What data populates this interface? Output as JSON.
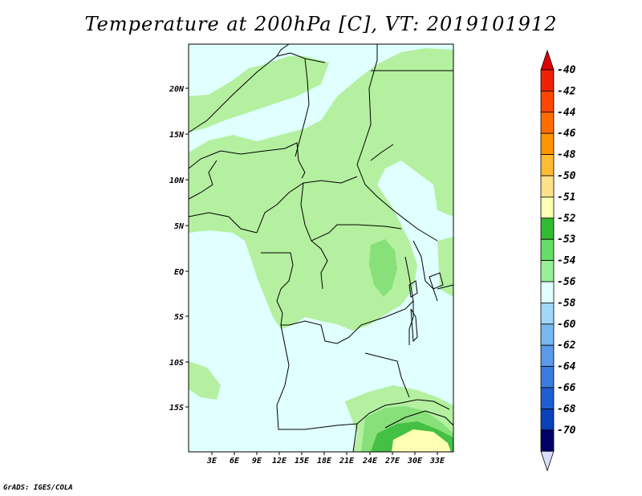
{
  "title": "Temperature at 200hPa [C], VT: 2019101912",
  "credit": "GrADS: IGES/COLA",
  "lat_labels": [
    "20N",
    "15N",
    "10N",
    "5N",
    "EQ",
    "5S",
    "10S",
    "15S"
  ],
  "lon_labels": [
    "3E",
    "6E",
    "9E",
    "12E",
    "15E",
    "18E",
    "21E",
    "24E",
    "27E",
    "30E",
    "33E"
  ],
  "colorbar": {
    "labels": [
      "-40",
      "-42",
      "-44",
      "-46",
      "-48",
      "-50",
      "-51",
      "-52",
      "-53",
      "-54",
      "-56",
      "-58",
      "-60",
      "-62",
      "-64",
      "-66",
      "-68",
      "-70"
    ],
    "colors": [
      "#ee2200",
      "#ff4500",
      "#ff6d00",
      "#ff9500",
      "#ffbb33",
      "#ffe08a",
      "#ffffb4",
      "#33bb33",
      "#66dd66",
      "#99ee99",
      "#e0ffff",
      "#a0d8f8",
      "#78b8f0",
      "#5a9ae8",
      "#3c7ce0",
      "#1e5ed0",
      "#0a40b8",
      "#000066"
    ],
    "top_arrow_color": "#dd0000",
    "bottom_arrow_color": "#ddddff"
  },
  "map": {
    "background_color": "#e0ffff",
    "green_light": "#b4f0a0",
    "green_mid": "#88e07a",
    "green_dark": "#44c044",
    "yellow": "#ffffb4",
    "border_color": "#000000"
  }
}
